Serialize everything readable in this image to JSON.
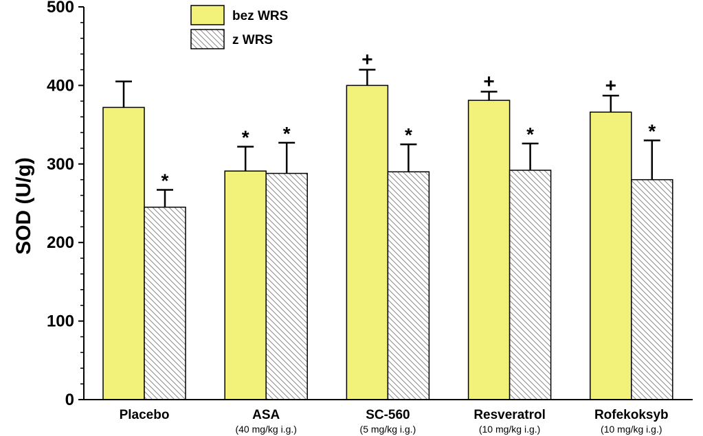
{
  "chart_data": {
    "type": "bar",
    "ylabel": "SOD (U/g)",
    "ylim": [
      0,
      500
    ],
    "yticks": [
      "0",
      "100",
      "200",
      "300",
      "400",
      "500"
    ],
    "categories": [
      "Placebo",
      "ASA",
      "SC-560",
      "Resveratrol",
      "Rofekoksyb"
    ],
    "category_sublabels": [
      "",
      "(40 mg/kg i.g.)",
      "(5 mg/kg i.g.)",
      "(10 mg/kg i.g.)",
      "(10 mg/kg i.g.)"
    ],
    "legend_position": "top-left",
    "grid": false,
    "series": [
      {
        "name": "bez WRS",
        "color": "#f2f27a",
        "pattern": "solid",
        "values": [
          372,
          291,
          400,
          381,
          366
        ],
        "errors": [
          33,
          31,
          20,
          11,
          21
        ],
        "markers": [
          "",
          "*",
          "+",
          "+",
          "+"
        ]
      },
      {
        "name": "z WRS",
        "color": "#ffffff",
        "pattern": "hatched",
        "values": [
          245,
          288,
          290,
          292,
          280
        ],
        "errors": [
          22,
          39,
          35,
          34,
          50
        ],
        "markers": [
          "*",
          "*",
          "*",
          "*",
          "*"
        ]
      }
    ]
  }
}
